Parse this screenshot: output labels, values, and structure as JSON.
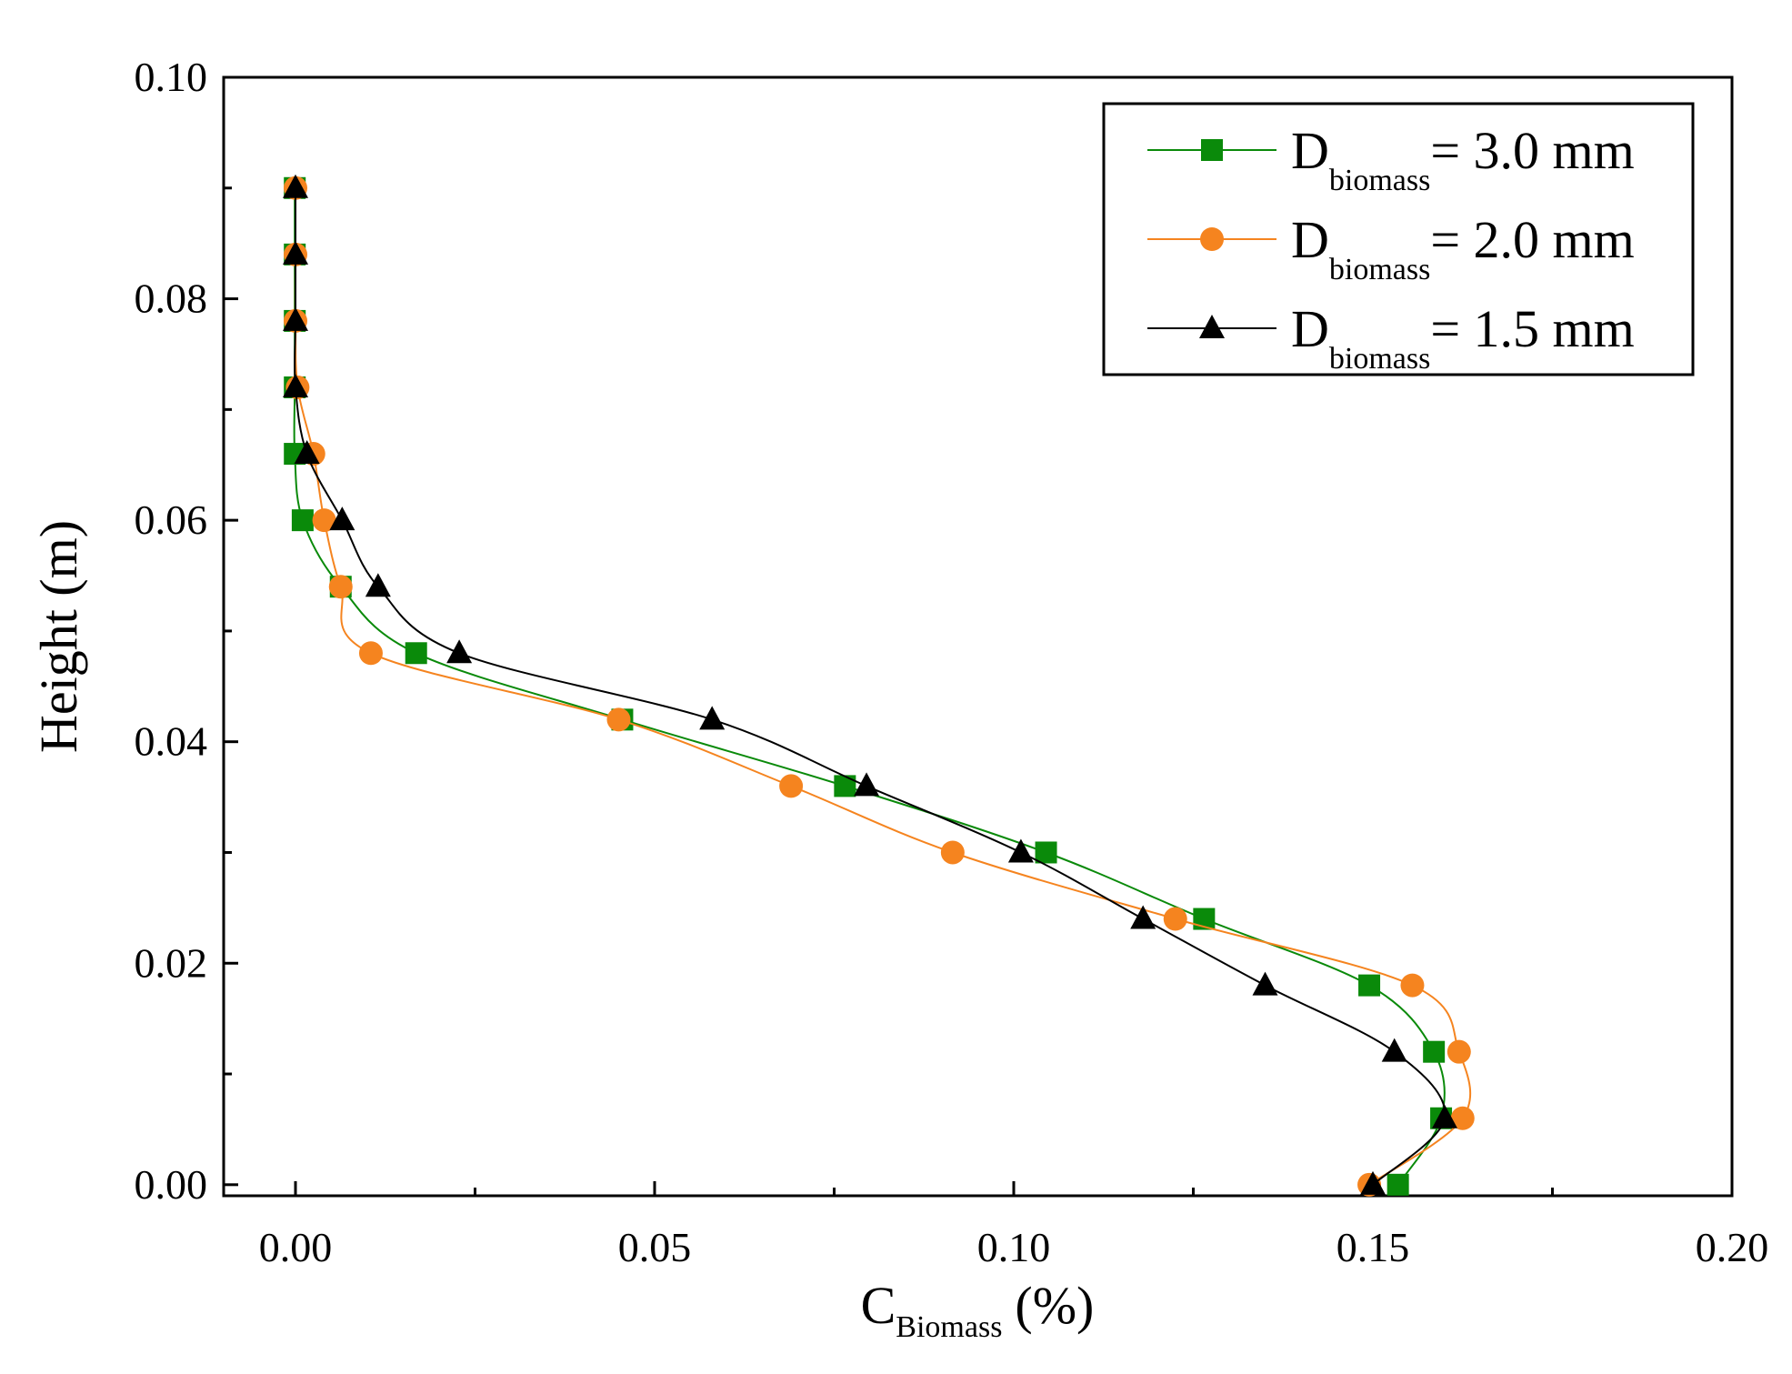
{
  "chart_data": {
    "type": "line",
    "title": "",
    "xlabel": {
      "main": "C",
      "sub": "Biomass",
      "unit": "(%)"
    },
    "ylabel": "Height (m)",
    "xlim": [
      -0.01,
      0.2
    ],
    "ylim": [
      -0.001,
      0.1
    ],
    "xticks": [
      0.0,
      0.05,
      0.1,
      0.15,
      0.2
    ],
    "xtick_labels": [
      "0.00",
      "0.05",
      "0.10",
      "0.15",
      "0.20"
    ],
    "yticks": [
      0.0,
      0.02,
      0.04,
      0.06,
      0.08,
      0.1
    ],
    "ytick_labels": [
      "0.00",
      "0.02",
      "0.04",
      "0.06",
      "0.08",
      "0.10"
    ],
    "grid": false,
    "legend_position": "top-right",
    "series": [
      {
        "name": "D_biomass = 3.0 mm",
        "label_main": "D",
        "label_sub": "biomass",
        "label_value": "= 3.0 mm",
        "color": "#0a8a0a",
        "marker": "square",
        "x": [
          0.1535,
          0.1595,
          0.1585,
          0.1495,
          0.1265,
          0.1045,
          0.0765,
          0.0455,
          0.0168,
          0.0063,
          0.001,
          -0.0001,
          -0.0001,
          -0.0001,
          -0.0001,
          -0.0001
        ],
        "y": [
          0.0,
          0.006,
          0.012,
          0.018,
          0.024,
          0.03,
          0.036,
          0.042,
          0.048,
          0.054,
          0.06,
          0.066,
          0.072,
          0.078,
          0.084,
          0.09
        ]
      },
      {
        "name": "D_biomass = 2.0 mm",
        "label_main": "D",
        "label_sub": "biomass",
        "label_value": "= 2.0 mm",
        "color": "#f5841f",
        "marker": "circle",
        "x": [
          0.1495,
          0.1625,
          0.162,
          0.1555,
          0.1225,
          0.0915,
          0.069,
          0.045,
          0.0105,
          0.0063,
          0.004,
          0.0025,
          0.0003,
          0.0,
          0.0,
          0.0
        ],
        "y": [
          0.0,
          0.006,
          0.012,
          0.018,
          0.024,
          0.03,
          0.036,
          0.042,
          0.048,
          0.054,
          0.06,
          0.066,
          0.072,
          0.078,
          0.084,
          0.09
        ]
      },
      {
        "name": "D_biomass = 1.5 mm",
        "label_main": "D",
        "label_sub": "biomass",
        "label_value": "= 1.5 mm",
        "color": "#000000",
        "marker": "triangle",
        "x": [
          0.15,
          0.16,
          0.153,
          0.135,
          0.118,
          0.101,
          0.0795,
          0.058,
          0.0228,
          0.0115,
          0.0065,
          0.0016,
          0.0,
          0.0,
          0.0,
          0.0
        ],
        "y": [
          0.0,
          0.006,
          0.012,
          0.018,
          0.024,
          0.03,
          0.036,
          0.042,
          0.048,
          0.054,
          0.06,
          0.066,
          0.072,
          0.078,
          0.084,
          0.09
        ]
      }
    ]
  }
}
